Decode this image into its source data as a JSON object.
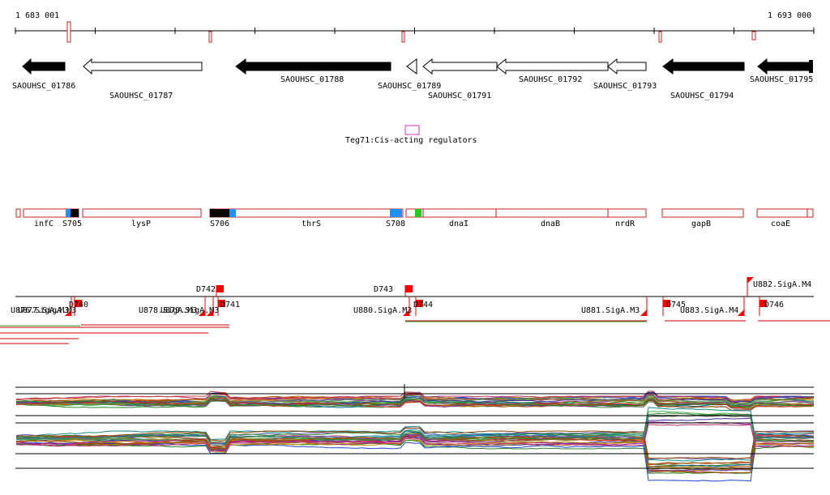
{
  "coordinates": {
    "start": "1 683 001",
    "end": "1 693 000"
  },
  "genes": [
    {
      "label": "SAOUHSC_01786",
      "fill": "black",
      "dir": "left"
    },
    {
      "label": "SAOUHSC_01787",
      "fill": "white",
      "dir": "left"
    },
    {
      "label": "SAOUHSC_01788",
      "fill": "black",
      "dir": "left"
    },
    {
      "label": "SAOUHSC_01789",
      "fill": "white",
      "dir": "left"
    },
    {
      "label": "SAOUHSC_01791",
      "fill": "white",
      "dir": "left"
    },
    {
      "label": "SAOUHSC_01792",
      "fill": "white",
      "dir": "left"
    },
    {
      "label": "SAOUHSC_01793",
      "fill": "white",
      "dir": "left"
    },
    {
      "label": "SAOUHSC_01794",
      "fill": "black",
      "dir": "left"
    },
    {
      "label": "SAOUHSC_01795",
      "fill": "black",
      "dir": "left"
    }
  ],
  "regulators": [
    {
      "label": "Teg71:Cis-acting regulators"
    }
  ],
  "operons": [
    {
      "label": "infC"
    },
    {
      "label": "S705"
    },
    {
      "label": "lysP"
    },
    {
      "label": "S706"
    },
    {
      "label": "thrS"
    },
    {
      "label": "S708"
    },
    {
      "label": "dnaI"
    },
    {
      "label": "dnaB"
    },
    {
      "label": "nrdR"
    },
    {
      "label": "gapB"
    },
    {
      "label": "coaE"
    }
  ],
  "promoters": [
    {
      "label": "D740"
    },
    {
      "label": "D741"
    },
    {
      "label": "D742"
    },
    {
      "label": "D743"
    },
    {
      "label": "D744"
    },
    {
      "label": "D745"
    },
    {
      "label": "D746"
    },
    {
      "label": "U876.SigA.M3"
    },
    {
      "label": "U877.SigA.M3"
    },
    {
      "label": "U878.SigA.M3"
    },
    {
      "label": "U879.SigA.M3"
    },
    {
      "label": "U880.SigA.M3"
    },
    {
      "label": "U881.SigA.M3"
    },
    {
      "label": "U882.SigA.M4"
    },
    {
      "label": "U883.SigA.M4"
    }
  ],
  "colors": {
    "marker": "#cc2222",
    "regulator": "#cc33cc",
    "operon_stroke": "#cc2222",
    "operon_black": "#000000",
    "operon_blue": "#1e90ff",
    "operon_green": "#22cc22",
    "promoter": "#ff0000",
    "transcript_red": "#cc0000",
    "transcript_green": "#33aa33"
  }
}
